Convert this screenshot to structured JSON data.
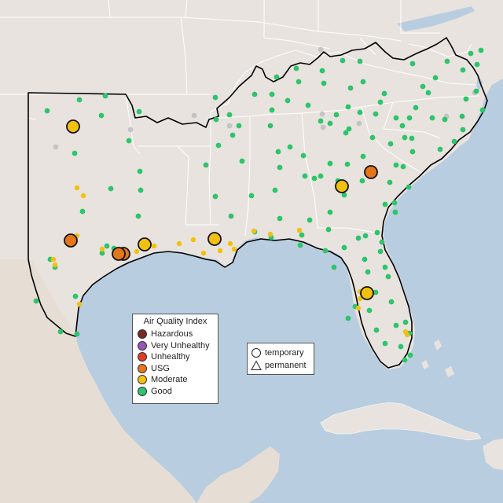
{
  "colors": {
    "water": "#b9cde0",
    "land": "#e8e3df",
    "land_mexico": "#e9e2d9",
    "border": "#ffffff",
    "region_outline": "#000000"
  },
  "legend_aqi": {
    "title": "Air Quality Index",
    "categories": [
      {
        "label": "Hazardous",
        "color": "#7b2a24"
      },
      {
        "label": "Very Unhealthy",
        "color": "#9a56b7"
      },
      {
        "label": "Unhealthy",
        "color": "#df3d2c"
      },
      {
        "label": "USG",
        "color": "#e4771c"
      },
      {
        "label": "Moderate",
        "color": "#f2c10f"
      },
      {
        "label": "Good",
        "color": "#2ec46b"
      }
    ]
  },
  "legend_site": {
    "items": [
      {
        "label": "temporary",
        "icon": "circle-icon"
      },
      {
        "label": "permanent",
        "icon": "triangle-icon"
      }
    ]
  },
  "monitors_good_color": "#2ec46b",
  "monitors_moderate_color": "#f2c10f",
  "monitors_nodata_color": "#c4c4c4",
  "highlight_sites": [
    {
      "name": "oklahoma-moderate",
      "category": "Moderate",
      "color": "#f2c10f"
    },
    {
      "name": "central-texas-usg",
      "category": "USG",
      "color": "#e4771c"
    },
    {
      "name": "houston-usg",
      "category": "USG",
      "color": "#e4771c"
    },
    {
      "name": "beaumont-moderate",
      "category": "Moderate",
      "color": "#f2c10f"
    },
    {
      "name": "baton-rouge-moderate",
      "category": "Moderate",
      "color": "#f2c10f"
    },
    {
      "name": "macon-moderate",
      "category": "Moderate",
      "color": "#f2c10f"
    },
    {
      "name": "augusta-usg",
      "category": "USG",
      "color": "#e4771c"
    },
    {
      "name": "tampa-moderate",
      "category": "Moderate",
      "color": "#f2c10f"
    }
  ]
}
